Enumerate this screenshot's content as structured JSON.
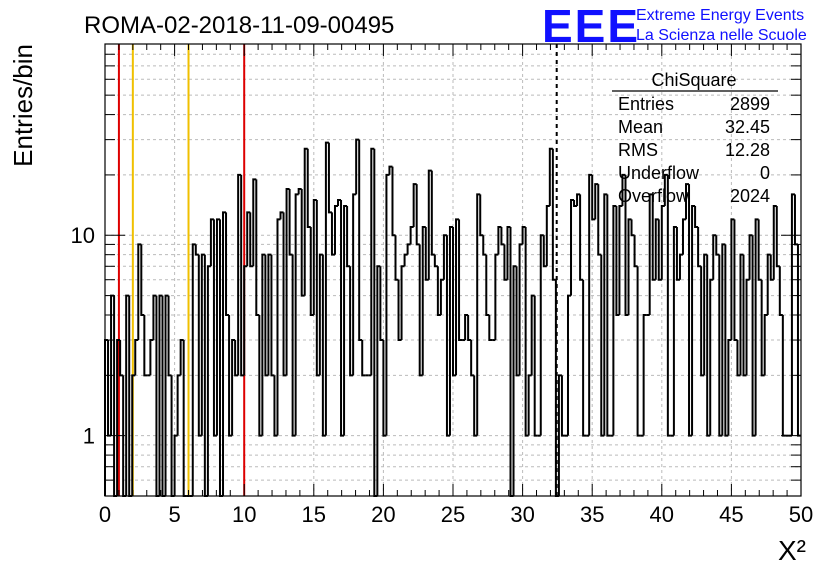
{
  "title": "ROMA-02-2018-11-09-00495",
  "logo": {
    "mark": "EEE",
    "line1": "Extreme Energy Events",
    "line2": "La Scienza nelle Scuole",
    "color": "#1010ff"
  },
  "stats_box": {
    "title": "ChiSquare",
    "rows": [
      {
        "label": "Entries",
        "value": "2899"
      },
      {
        "label": "Mean",
        "value": "32.45"
      },
      {
        "label": "RMS",
        "value": "12.28"
      },
      {
        "label": "Underflow",
        "value": "0"
      },
      {
        "label": "Overflow",
        "value": "2024"
      }
    ]
  },
  "chart_data": {
    "type": "histogram",
    "title": "ROMA-02-2018-11-09-00495",
    "xlabel": "Χ²",
    "ylabel": "Entries/bin",
    "x_range": [
      0,
      50
    ],
    "y_range": [
      0.5,
      90
    ],
    "y_scale": "log",
    "bin_width": 1,
    "x_ticks": [
      "0",
      "5",
      "10",
      "15",
      "20",
      "25",
      "30",
      "35",
      "40",
      "45",
      "50"
    ],
    "y_tick_labels": [
      "1",
      "10"
    ],
    "grid": true,
    "bin_edges_start": 0,
    "counts": [
      3,
      1,
      5,
      0,
      3,
      2,
      0,
      5,
      0,
      2,
      3,
      9,
      4,
      2,
      2,
      3,
      5,
      0,
      5,
      0,
      5,
      2,
      0,
      1,
      2,
      3,
      0,
      0,
      0,
      9,
      8,
      1,
      8,
      0,
      7,
      12,
      1,
      12,
      0,
      13,
      4,
      1,
      3,
      2,
      20,
      2,
      7,
      13,
      7,
      19,
      4,
      1,
      8,
      2,
      8,
      2,
      1,
      12,
      13,
      2,
      17,
      8,
      1,
      16,
      17,
      5,
      27,
      11,
      4,
      15,
      2,
      8,
      1,
      29,
      13,
      8,
      14,
      15,
      1,
      14,
      7,
      2,
      16,
      30,
      3,
      2,
      2,
      2,
      27,
      0,
      7,
      3,
      1,
      20,
      22,
      10,
      6,
      3,
      7,
      8,
      9,
      11,
      18,
      9,
      2,
      11,
      6,
      21,
      8,
      7,
      4,
      6,
      10,
      1,
      11,
      2,
      12,
      3,
      3,
      4,
      3,
      2,
      1,
      16,
      10,
      8,
      4,
      3,
      3,
      8,
      11,
      9,
      6,
      11,
      0,
      7,
      2,
      9,
      11,
      1,
      2,
      5,
      1,
      1,
      10,
      7,
      14,
      27,
      6,
      0,
      2,
      1,
      1,
      5,
      15,
      14,
      16,
      6,
      1,
      1,
      20,
      12,
      18,
      8,
      1,
      16,
      1,
      1,
      14,
      4,
      14,
      20,
      4,
      12,
      10,
      7,
      1,
      1,
      4,
      4,
      16,
      6,
      12,
      6,
      14,
      20,
      1,
      1,
      11,
      6,
      8,
      12,
      18,
      1,
      14,
      11,
      7,
      2,
      8,
      1,
      6,
      10,
      8,
      1,
      9,
      1,
      3,
      12,
      3,
      2,
      8,
      2,
      6,
      10,
      1,
      12,
      6,
      2,
      4,
      8,
      6,
      14,
      7,
      4,
      1,
      1,
      1,
      16,
      9,
      1
    ],
    "reference_lines": [
      {
        "x": 1,
        "color": "#dd0000"
      },
      {
        "x": 2,
        "color": "#f0c000"
      },
      {
        "x": 6,
        "color": "#f0c000"
      },
      {
        "x": 10,
        "color": "#dd0000"
      }
    ],
    "mean_line": {
      "x": 32.45,
      "style": "dashed",
      "color": "#000000"
    }
  }
}
